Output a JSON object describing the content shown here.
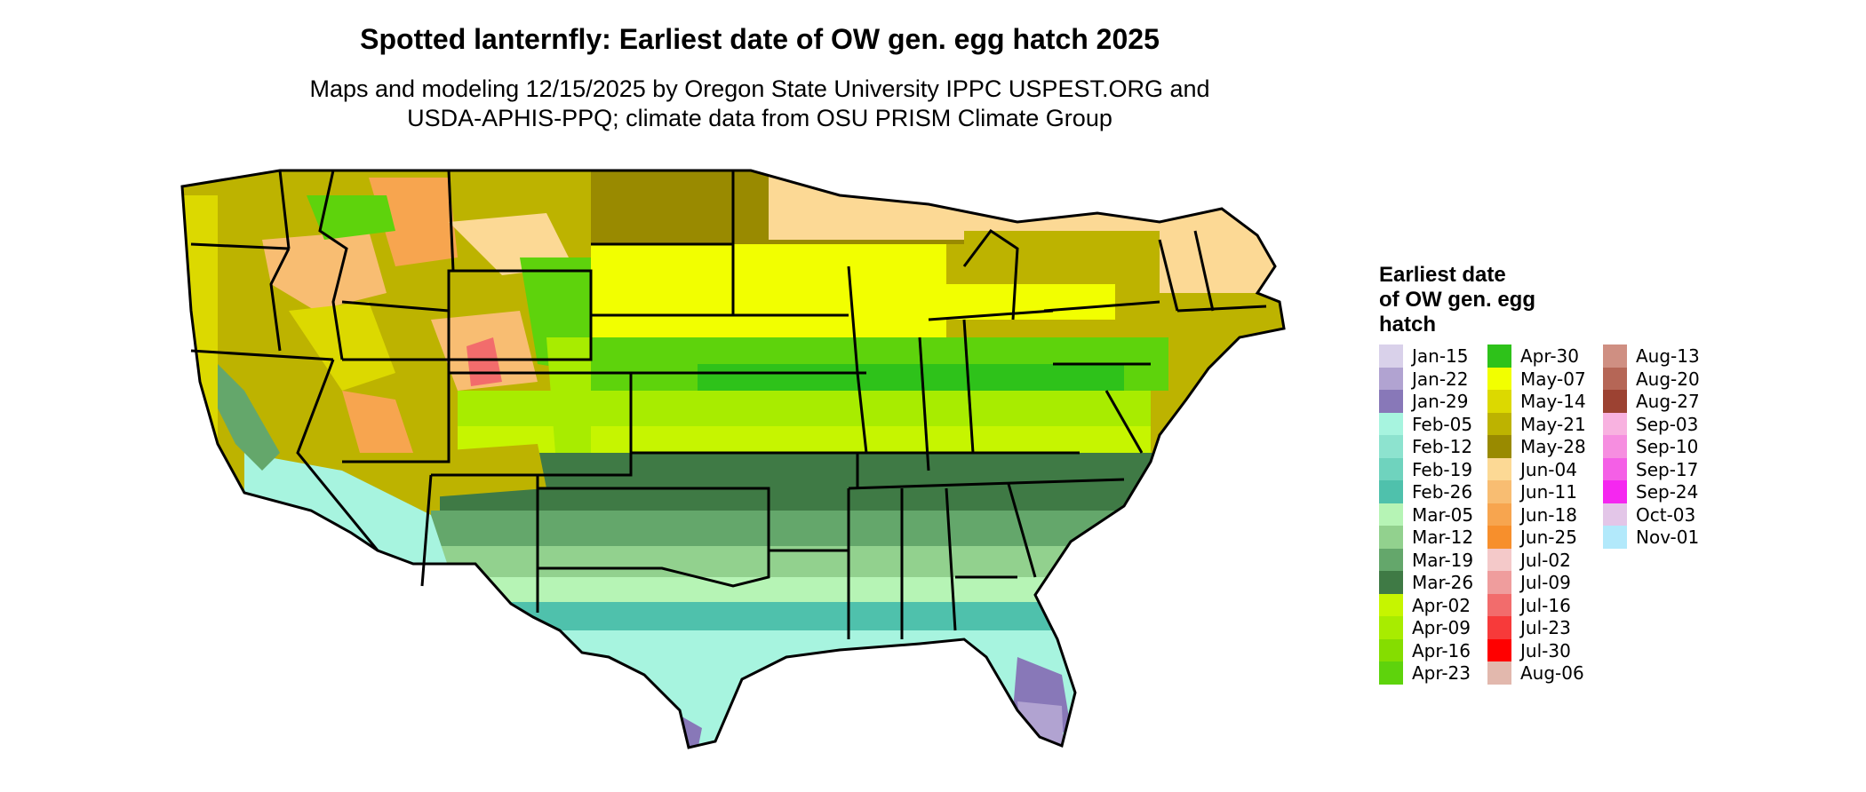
{
  "title": "Spotted lanternfly: Earliest date of OW gen. egg hatch 2025",
  "subtitle_line1": "Maps and modeling 12/15/2025 by Oregon State University IPPC USPEST.ORG and",
  "subtitle_line2": "USDA-APHIS-PPQ; climate data from OSU PRISM Climate Group",
  "legend": {
    "title_lines": [
      "Earliest date",
      "of OW gen. egg",
      "hatch"
    ],
    "items": [
      {
        "label": "Jan-15",
        "color": "#d9d1ea"
      },
      {
        "label": "Jan-22",
        "color": "#b1a3d1"
      },
      {
        "label": "Jan-29",
        "color": "#8878b8"
      },
      {
        "label": "Feb-05",
        "color": "#a7f4df"
      },
      {
        "label": "Feb-12",
        "color": "#8de3cf"
      },
      {
        "label": "Feb-19",
        "color": "#6fd3be"
      },
      {
        "label": "Feb-26",
        "color": "#4fc1ac"
      },
      {
        "label": "Mar-05",
        "color": "#b6f4b5"
      },
      {
        "label": "Mar-12",
        "color": "#92d18e"
      },
      {
        "label": "Mar-19",
        "color": "#64a76b"
      },
      {
        "label": "Mar-26",
        "color": "#3f7a45"
      },
      {
        "label": "Apr-02",
        "color": "#c6f500"
      },
      {
        "label": "Apr-09",
        "color": "#a8ec00"
      },
      {
        "label": "Apr-16",
        "color": "#85dd00"
      },
      {
        "label": "Apr-23",
        "color": "#5ed30c"
      },
      {
        "label": "Apr-30",
        "color": "#2ec21a"
      },
      {
        "label": "May-07",
        "color": "#f2ff00"
      },
      {
        "label": "May-14",
        "color": "#dcd900"
      },
      {
        "label": "May-21",
        "color": "#bdb300"
      },
      {
        "label": "May-28",
        "color": "#998a00"
      },
      {
        "label": "Jun-04",
        "color": "#fcd995"
      },
      {
        "label": "Jun-11",
        "color": "#f8bd72"
      },
      {
        "label": "Jun-18",
        "color": "#f7a54f"
      },
      {
        "label": "Jun-25",
        "color": "#f78f2c"
      },
      {
        "label": "Jul-02",
        "color": "#f4c9c9"
      },
      {
        "label": "Jul-09",
        "color": "#ef9d9d"
      },
      {
        "label": "Jul-16",
        "color": "#f26c6c"
      },
      {
        "label": "Jul-23",
        "color": "#f73a3a"
      },
      {
        "label": "Jul-30",
        "color": "#ff0000"
      },
      {
        "label": "Aug-06",
        "color": "#e2b8ad"
      },
      {
        "label": "Aug-13",
        "color": "#cf8f82"
      },
      {
        "label": "Aug-20",
        "color": "#b56656"
      },
      {
        "label": "Aug-27",
        "color": "#9c4232"
      },
      {
        "label": "Sep-03",
        "color": "#f8b2e0"
      },
      {
        "label": "Sep-10",
        "color": "#f68ee0"
      },
      {
        "label": "Sep-17",
        "color": "#f45fe6"
      },
      {
        "label": "Sep-24",
        "color": "#f527f0"
      },
      {
        "label": "Oct-03",
        "color": "#e3c6e8"
      },
      {
        "label": "Nov-01",
        "color": "#b2e9fb"
      }
    ]
  }
}
